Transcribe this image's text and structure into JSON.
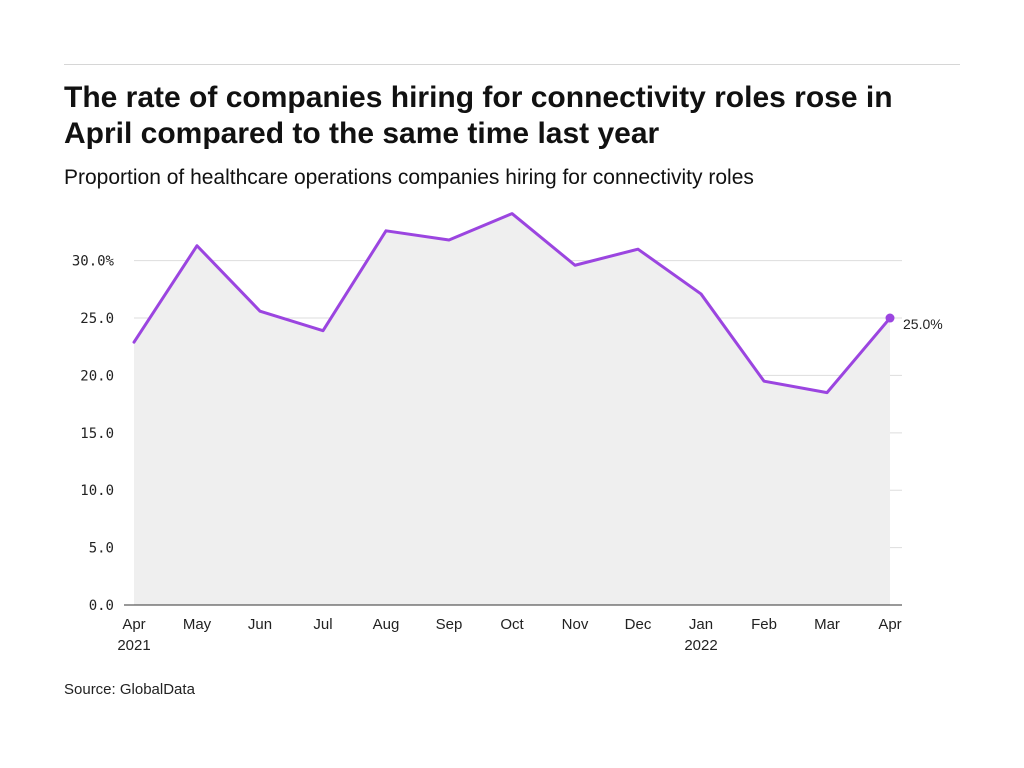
{
  "header": {
    "title": "The rate of companies hiring for connectivity roles rose in April compared to the same time last year",
    "subtitle": "Proportion of healthcare operations companies hiring for connectivity roles"
  },
  "footer": {
    "source": "Source: GlobalData"
  },
  "chart_data": {
    "type": "area",
    "title": "The rate of companies hiring for connectivity roles rose in April compared to the same time last year",
    "subtitle": "Proportion of healthcare operations companies hiring for connectivity roles",
    "xlabel": "",
    "ylabel": "",
    "categories": [
      "Apr 2021",
      "May 2021",
      "Jun 2021",
      "Jul 2021",
      "Aug 2021",
      "Sep 2021",
      "Oct 2021",
      "Nov 2021",
      "Dec 2021",
      "Jan 2022",
      "Feb 2022",
      "Mar 2022",
      "Apr 2022"
    ],
    "x_tick_labels": [
      {
        "month": "Apr",
        "year": "2021"
      },
      {
        "month": "May",
        "year": ""
      },
      {
        "month": "Jun",
        "year": ""
      },
      {
        "month": "Jul",
        "year": ""
      },
      {
        "month": "Aug",
        "year": ""
      },
      {
        "month": "Sep",
        "year": ""
      },
      {
        "month": "Oct",
        "year": ""
      },
      {
        "month": "Nov",
        "year": ""
      },
      {
        "month": "Dec",
        "year": ""
      },
      {
        "month": "Jan",
        "year": "2022"
      },
      {
        "month": "Feb",
        "year": ""
      },
      {
        "month": "Mar",
        "year": ""
      },
      {
        "month": "Apr",
        "year": ""
      }
    ],
    "series": [
      {
        "values": [
          22.9,
          31.3,
          25.6,
          23.9,
          32.6,
          31.8,
          34.1,
          29.6,
          31.0,
          27.1,
          19.5,
          18.5,
          25.0
        ]
      }
    ],
    "y_ticks": [
      0,
      5,
      10,
      15,
      20,
      25,
      30
    ],
    "y_tick_labels": [
      "0.0",
      "5.0",
      "10.0",
      "15.0",
      "20.0",
      "25.0",
      "30.0%"
    ],
    "ylim": [
      0,
      34.5
    ],
    "end_label": "25.0%",
    "grid": true,
    "legend": "none",
    "colors": {
      "line": "#9b45e0",
      "area": "#efefef",
      "grid": "#dddddd",
      "axis": "#333333"
    }
  }
}
